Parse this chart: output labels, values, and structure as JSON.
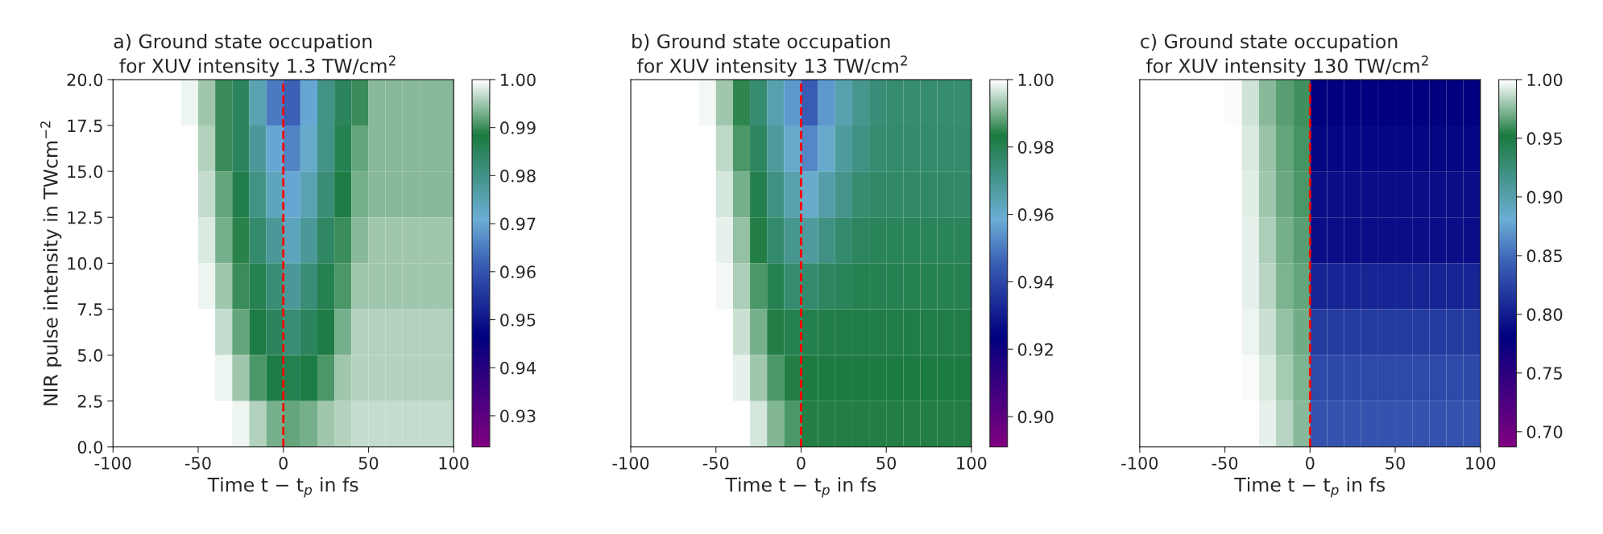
{
  "chart_data": [
    {
      "type": "heatmap",
      "title": "a) Ground state occupation\n for XUV intensity 1.3 TW/cm$^{2}$",
      "xlabel": "Time t − t$_{p}$ in fs",
      "ylabel": "NIR pulse intensity in TWcm$^{−2}$",
      "xlim": [
        -100,
        100
      ],
      "ylim": [
        0,
        20
      ],
      "xticks": [
        -100,
        -50,
        0,
        50,
        100
      ],
      "yticks": [
        {
          "value": 0,
          "label": "0.0"
        },
        {
          "value": 2.5,
          "label": "2.5"
        },
        {
          "value": 5,
          "label": "5.0"
        },
        {
          "value": 7.5,
          "label": "7.5"
        },
        {
          "value": 10,
          "label": "10.0"
        },
        {
          "value": 12.5,
          "label": "12.5"
        },
        {
          "value": 15,
          "label": "15.0"
        },
        {
          "value": 17.5,
          "label": "17.5"
        },
        {
          "value": 20,
          "label": "20.0"
        }
      ],
      "clim": [
        0.9235,
        1.0
      ],
      "cticks": [
        {
          "value": 0.93,
          "label": "0.93"
        },
        {
          "value": 0.94,
          "label": "0.94"
        },
        {
          "value": 0.95,
          "label": "0.95"
        },
        {
          "value": 0.96,
          "label": "0.96"
        },
        {
          "value": 0.97,
          "label": "0.97"
        },
        {
          "value": 0.98,
          "label": "0.98"
        },
        {
          "value": 0.99,
          "label": "0.99"
        },
        {
          "value": 1.0,
          "label": "1.00"
        }
      ],
      "grid": false,
      "ref_lines": [
        {
          "axis": "x",
          "value": 0,
          "color": "#ff0000",
          "line_style": "dashed"
        }
      ],
      "cells": [
        [
          1,
          1,
          1,
          1,
          0.999,
          0.995,
          0.99,
          0.985,
          0.975,
          0.965,
          0.962,
          0.97,
          0.98,
          0.985,
          0.99,
          0.994,
          0.994,
          0.994,
          0.994,
          0.994
        ],
        [
          1,
          1,
          1,
          1,
          1,
          0.996,
          0.99,
          0.985,
          0.978,
          0.97,
          0.966,
          0.972,
          0.98,
          0.986,
          0.992,
          0.994,
          0.994,
          0.994,
          0.994,
          0.994
        ],
        [
          1,
          1,
          1,
          1,
          1,
          0.997,
          0.992,
          0.987,
          0.98,
          0.974,
          0.97,
          0.975,
          0.982,
          0.988,
          0.993,
          0.994,
          0.994,
          0.994,
          0.994,
          0.994
        ],
        [
          1,
          1,
          1,
          1,
          1,
          0.998,
          0.993,
          0.989,
          0.983,
          0.978,
          0.974,
          0.978,
          0.984,
          0.99,
          0.994,
          0.995,
          0.995,
          0.995,
          0.995,
          0.995
        ],
        [
          1,
          1,
          1,
          1,
          1,
          0.999,
          0.995,
          0.99,
          0.986,
          0.982,
          0.978,
          0.982,
          0.986,
          0.991,
          0.995,
          0.995,
          0.995,
          0.995,
          0.995,
          0.995
        ],
        [
          1,
          1,
          1,
          1,
          1,
          1,
          0.997,
          0.992,
          0.988,
          0.985,
          0.982,
          0.985,
          0.988,
          0.993,
          0.996,
          0.996,
          0.996,
          0.996,
          0.996,
          0.996
        ],
        [
          1,
          1,
          1,
          1,
          1,
          1,
          0.999,
          0.995,
          0.991,
          0.988,
          0.986,
          0.988,
          0.991,
          0.995,
          0.996,
          0.996,
          0.996,
          0.996,
          0.996,
          0.996
        ],
        [
          1,
          1,
          1,
          1,
          1,
          1,
          1,
          0.999,
          0.996,
          0.993,
          0.992,
          0.993,
          0.995,
          0.996,
          0.997,
          0.997,
          0.997,
          0.997,
          0.997,
          0.997
        ]
      ]
    },
    {
      "type": "heatmap",
      "title": "b) Ground state occupation\n for XUV intensity 13 TW/cm$^{2}$",
      "xlabel": "Time t − t$_{p}$ in fs",
      "xlim": [
        -100,
        100
      ],
      "ylim": [
        0,
        20
      ],
      "xticks": [
        -100,
        -50,
        0,
        50,
        100
      ],
      "tick_labels": "x",
      "clim": [
        0.891,
        1.0
      ],
      "cticks": [
        {
          "value": 0.9,
          "label": "0.90"
        },
        {
          "value": 0.92,
          "label": "0.92"
        },
        {
          "value": 0.94,
          "label": "0.94"
        },
        {
          "value": 0.96,
          "label": "0.96"
        },
        {
          "value": 0.98,
          "label": "0.98"
        },
        {
          "value": 1.0,
          "label": "1.00"
        }
      ],
      "grid": false,
      "ref_lines": [
        {
          "axis": "x",
          "value": 0,
          "color": "#ff0000",
          "line_style": "dashed"
        }
      ],
      "cells": [
        [
          1,
          1,
          1,
          1,
          0.999,
          0.993,
          0.985,
          0.975,
          0.965,
          0.955,
          0.945,
          0.955,
          0.965,
          0.97,
          0.974,
          0.975,
          0.975,
          0.975,
          0.975,
          0.975
        ],
        [
          1,
          1,
          1,
          1,
          1,
          0.995,
          0.987,
          0.978,
          0.968,
          0.96,
          0.952,
          0.96,
          0.968,
          0.972,
          0.975,
          0.976,
          0.976,
          0.976,
          0.976,
          0.976
        ],
        [
          1,
          1,
          1,
          1,
          1,
          0.997,
          0.99,
          0.981,
          0.972,
          0.965,
          0.96,
          0.966,
          0.971,
          0.975,
          0.977,
          0.977,
          0.977,
          0.977,
          0.977,
          0.977
        ],
        [
          1,
          1,
          1,
          1,
          1,
          0.998,
          0.992,
          0.984,
          0.976,
          0.97,
          0.968,
          0.972,
          0.976,
          0.978,
          0.979,
          0.979,
          0.979,
          0.979,
          0.979,
          0.979
        ],
        [
          1,
          1,
          1,
          1,
          1,
          0.999,
          0.994,
          0.987,
          0.98,
          0.975,
          0.976,
          0.978,
          0.979,
          0.98,
          0.98,
          0.98,
          0.98,
          0.98,
          0.98,
          0.98
        ],
        [
          1,
          1,
          1,
          1,
          1,
          1,
          0.996,
          0.99,
          0.984,
          0.98,
          0.981,
          0.982,
          0.982,
          0.982,
          0.982,
          0.982,
          0.982,
          0.982,
          0.982,
          0.982
        ],
        [
          1,
          1,
          1,
          1,
          1,
          1,
          0.998,
          0.993,
          0.987,
          0.984,
          0.983,
          0.983,
          0.983,
          0.983,
          0.983,
          0.983,
          0.983,
          0.983,
          0.983,
          0.983
        ],
        [
          1,
          1,
          1,
          1,
          1,
          1,
          1,
          0.997,
          0.991,
          0.987,
          0.984,
          0.984,
          0.984,
          0.984,
          0.984,
          0.984,
          0.984,
          0.984,
          0.984,
          0.984
        ]
      ]
    },
    {
      "type": "heatmap",
      "title": "c) Ground state occupation\n for XUV intensity 130 TW/cm$^{2}$",
      "xlabel": "Time t − t$_{p}$ in fs",
      "xlim": [
        -100,
        100
      ],
      "ylim": [
        0,
        20
      ],
      "xticks": [
        -100,
        -50,
        0,
        50,
        100
      ],
      "tick_labels": "x",
      "clim": [
        0.687,
        1.0
      ],
      "cticks": [
        {
          "value": 0.7,
          "label": "0.70"
        },
        {
          "value": 0.75,
          "label": "0.75"
        },
        {
          "value": 0.8,
          "label": "0.80"
        },
        {
          "value": 0.85,
          "label": "0.85"
        },
        {
          "value": 0.9,
          "label": "0.90"
        },
        {
          "value": 0.95,
          "label": "0.95"
        },
        {
          "value": 1.0,
          "label": "1.00"
        }
      ],
      "grid": false,
      "ref_lines": [
        {
          "axis": "x",
          "value": 0,
          "color": "#ff0000",
          "line_style": "dashed"
        }
      ],
      "cells": [
        [
          1,
          1,
          1,
          1,
          1,
          0.998,
          0.99,
          0.975,
          0.965,
          0.96,
          0.78,
          0.78,
          0.78,
          0.78,
          0.78,
          0.78,
          0.78,
          0.78,
          0.78,
          0.78
        ],
        [
          1,
          1,
          1,
          1,
          1,
          0.999,
          0.992,
          0.978,
          0.967,
          0.962,
          0.785,
          0.785,
          0.785,
          0.785,
          0.785,
          0.785,
          0.785,
          0.785,
          0.785,
          0.785
        ],
        [
          1,
          1,
          1,
          1,
          1,
          0.999,
          0.993,
          0.98,
          0.969,
          0.963,
          0.79,
          0.79,
          0.79,
          0.79,
          0.79,
          0.79,
          0.79,
          0.79,
          0.79,
          0.79
        ],
        [
          1,
          1,
          1,
          1,
          1,
          1,
          0.994,
          0.982,
          0.971,
          0.965,
          0.79,
          0.79,
          0.79,
          0.79,
          0.79,
          0.79,
          0.79,
          0.79,
          0.79,
          0.79
        ],
        [
          1,
          1,
          1,
          1,
          1,
          1,
          0.995,
          0.985,
          0.973,
          0.967,
          0.805,
          0.805,
          0.805,
          0.805,
          0.805,
          0.805,
          0.805,
          0.805,
          0.805,
          0.805
        ],
        [
          1,
          1,
          1,
          1,
          1,
          1,
          0.996,
          0.988,
          0.977,
          0.97,
          0.82,
          0.82,
          0.82,
          0.82,
          0.82,
          0.82,
          0.82,
          0.82,
          0.82,
          0.82
        ],
        [
          1,
          1,
          1,
          1,
          1,
          1,
          0.998,
          0.992,
          0.981,
          0.973,
          0.83,
          0.83,
          0.83,
          0.83,
          0.83,
          0.83,
          0.83,
          0.83,
          0.83,
          0.83
        ],
        [
          1,
          1,
          1,
          1,
          1,
          1,
          0.999,
          0.995,
          0.985,
          0.975,
          0.835,
          0.835,
          0.835,
          0.835,
          0.835,
          0.835,
          0.835,
          0.835,
          0.835,
          0.835
        ]
      ]
    }
  ]
}
